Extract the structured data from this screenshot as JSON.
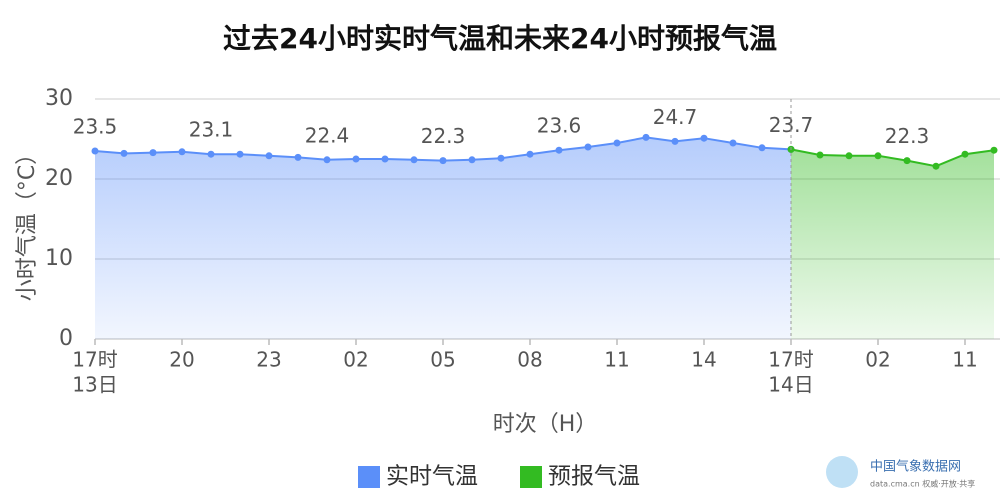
{
  "chart_data": {
    "type": "line",
    "title": "过去24小时实时气温和未来24小时预报气温",
    "y_label": "小时气温（°C）",
    "x_label": "时次（H）",
    "categories": [
      "17时",
      null,
      null,
      "20",
      null,
      null,
      "23",
      null,
      null,
      "02",
      null,
      null,
      "05",
      null,
      null,
      "08",
      null,
      null,
      "11",
      null,
      null,
      "14",
      null,
      null,
      "17时",
      null,
      null,
      "02",
      null,
      null,
      "11",
      null
    ],
    "category_dates": [
      "13日",
      null,
      null,
      null,
      null,
      null,
      null,
      null,
      null,
      null,
      null,
      null,
      null,
      null,
      null,
      null,
      null,
      null,
      null,
      null,
      null,
      null,
      null,
      null,
      "14日",
      null,
      null,
      null,
      null,
      null,
      null,
      null
    ],
    "series": [
      {
        "name": "实时气温",
        "color": "#5b8ff9",
        "values": [
          23.5,
          23.2,
          23.3,
          23.4,
          23.1,
          23.1,
          22.9,
          22.7,
          22.4,
          22.5,
          22.5,
          22.4,
          22.3,
          22.4,
          22.6,
          23.1,
          23.6,
          24.0,
          24.5,
          25.2,
          24.7,
          25.1,
          24.5,
          23.9,
          23.7,
          null,
          null,
          null,
          null,
          null,
          null,
          null
        ]
      },
      {
        "name": "预报气温",
        "color": "#33bb22",
        "values": [
          null,
          null,
          null,
          null,
          null,
          null,
          null,
          null,
          null,
          null,
          null,
          null,
          null,
          null,
          null,
          null,
          null,
          null,
          null,
          null,
          null,
          null,
          null,
          null,
          23.7,
          23.0,
          22.9,
          22.9,
          22.3,
          21.6,
          23.1,
          23.6
        ]
      }
    ],
    "ylim": [
      0,
      30
    ],
    "yticks": [
      0,
      10,
      20,
      30
    ],
    "grid": true,
    "watermark": {
      "name": "中国气象数据网",
      "site": "data.cma.cn 权威·开放·共享"
    }
  }
}
